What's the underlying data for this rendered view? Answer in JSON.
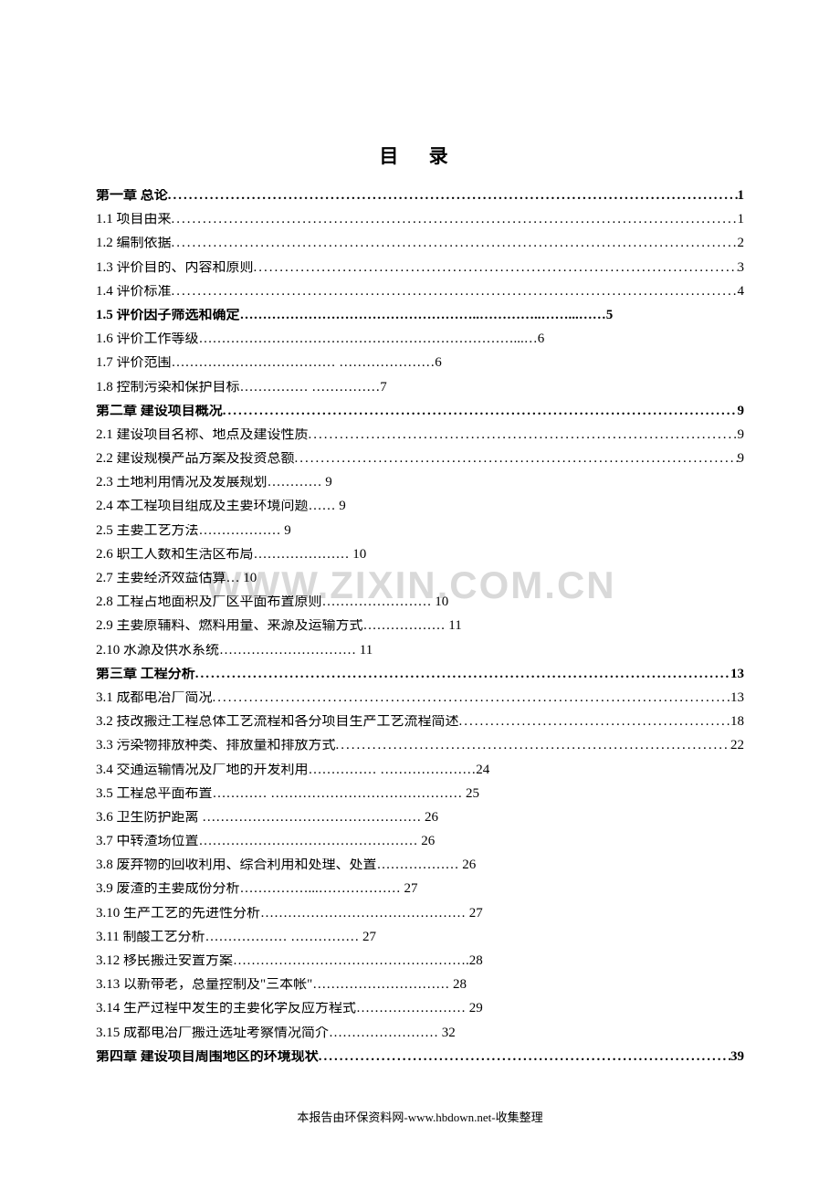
{
  "title": "目 录",
  "footer": "本报告由环保资料网-www.hbdown.net-收集整理",
  "watermark": "WWW.ZIXIN.COM.CN",
  "colors": {
    "text": "#000000",
    "bg": "#ffffff",
    "watermark": "#d9d9d9"
  },
  "fontsize": {
    "title": 21,
    "line": 15,
    "footer": 13,
    "watermark": 42
  },
  "toc": [
    {
      "label": "第一章  总论",
      "page": "1",
      "bold": true,
      "full": true
    },
    {
      "label": "1.1 项目由来",
      "page": "1",
      "bold": false,
      "full": true
    },
    {
      "label": "1.2 编制依据",
      "page": "2",
      "bold": false,
      "full": true
    },
    {
      "label": "1.3 评价目的、内容和原则",
      "page": "3",
      "bold": false,
      "full": true
    },
    {
      "label": "1.4 评价标准",
      "page": "4",
      "bold": false,
      "full": true
    },
    {
      "label": "1.5 评价因子筛选和确定……………………………………………..…………..……...……5",
      "page": "",
      "bold": true,
      "full": false,
      "plain": true
    },
    {
      "label": "1.6 评价工作等级……………………………………………………………...…6",
      "page": "",
      "bold": false,
      "full": false,
      "plain": true
    },
    {
      "label": "1.7 评价范围………………………………                               …………………6",
      "page": "",
      "bold": false,
      "full": false,
      "plain": true
    },
    {
      "label": "1.8 控制污染和保护目标……………                            ……………7",
      "page": "",
      "bold": false,
      "full": false,
      "plain": true
    },
    {
      "label": "第二章    建设项目概况",
      "page": "9",
      "bold": true,
      "full": true
    },
    {
      "label": "2.1  建设项目名称、地点及建设性质",
      "page": "9",
      "bold": false,
      "full": true
    },
    {
      "label": "2.2  建设规模产品方案及投资总额",
      "page": "9",
      "bold": false,
      "full": true
    },
    {
      "label": "2.3  土地利用情况及发展规划…………                                                            9",
      "page": "",
      "bold": false,
      "full": false,
      "plain": true
    },
    {
      "label": "2.4 本工程项目组成及主要环境问题……                                                          9",
      "page": "",
      "bold": false,
      "full": false,
      "plain": true
    },
    {
      "label": "2.5 主要工艺方法………………                                                                      9",
      "page": "",
      "bold": false,
      "full": false,
      "plain": true
    },
    {
      "label": "2.6 职工人数和生活区布局…………………                                                     10",
      "page": "",
      "bold": false,
      "full": false,
      "plain": true
    },
    {
      "label": "2.7 主要经济效益估算…                                                                                   10",
      "page": "",
      "bold": false,
      "full": false,
      "plain": true
    },
    {
      "label": "2.8 工程占地面积及厂区平面布置原则……………………                        10",
      "page": "",
      "bold": false,
      "full": false,
      "plain": true
    },
    {
      "label": "2.9 主要原辅料、燃料用量、来源及运输方式………………              11",
      "page": "",
      "bold": false,
      "full": false,
      "plain": true
    },
    {
      "label": "2.10 水源及供水系统…………………………                                                    11",
      "page": "",
      "bold": false,
      "full": false,
      "plain": true
    },
    {
      "label": "第三章    工程分析",
      "page": "13",
      "bold": true,
      "full": true
    },
    {
      "label": "3.1 成都电冶厂简况",
      "page": "13",
      "bold": false,
      "full": true
    },
    {
      "label": "3.2 技改搬迁工程总体工艺流程和各分项目生产工艺流程简述",
      "page": "18",
      "bold": false,
      "full": true
    },
    {
      "label": "3.3 污染物排放种类、排放量和排放方式",
      "page": "22",
      "bold": false,
      "full": true
    },
    {
      "label": "3.4 交通运输情况及厂地的开发利用……………    …………………24",
      "page": "",
      "bold": false,
      "full": false,
      "plain": true
    },
    {
      "label": "3.5 工程总平面布置…………  ……………………………………               25",
      "page": "",
      "bold": false,
      "full": false,
      "plain": true
    },
    {
      "label": "3.6 卫生防护距离    …………………………………………                         26",
      "page": "",
      "bold": false,
      "full": false,
      "plain": true
    },
    {
      "label": "3.7 中转渣场位置…………………………………………               26",
      "page": "",
      "bold": false,
      "full": false,
      "plain": true
    },
    {
      "label": "3.8  废弃物的回收利用、综合利用和处理、处置………………       26",
      "page": "",
      "bold": false,
      "full": false,
      "plain": true
    },
    {
      "label": "3.9  废渣的主要成份分析……………...………………                    27",
      "page": "",
      "bold": false,
      "full": false,
      "plain": true
    },
    {
      "label": "3.10  生产工艺的先进性分析………………………………………     27",
      "page": "",
      "bold": false,
      "full": false,
      "plain": true
    },
    {
      "label": "3.11  制酸工艺分析………………                           ……………    27",
      "page": "",
      "bold": false,
      "full": false,
      "plain": true
    },
    {
      "label": "3.12  移民搬迁安置方案…………………………………………….28",
      "page": "",
      "bold": false,
      "full": false,
      "plain": true
    },
    {
      "label": "3.13  以新带老，总量控制及\"三本帐\"…………………………           28",
      "page": "",
      "bold": false,
      "full": false,
      "plain": true
    },
    {
      "label": "3.14  生产过程中发生的主要化学反应方程式……………………    29",
      "page": "",
      "bold": false,
      "full": false,
      "plain": true
    },
    {
      "label": "3.15  成都电冶厂搬迁选址考察情况简介……………………               32",
      "page": "",
      "bold": false,
      "full": false,
      "plain": true
    },
    {
      "label": "第四章    建设项目周围地区的环境现状",
      "page": "39",
      "bold": true,
      "full": true
    }
  ]
}
